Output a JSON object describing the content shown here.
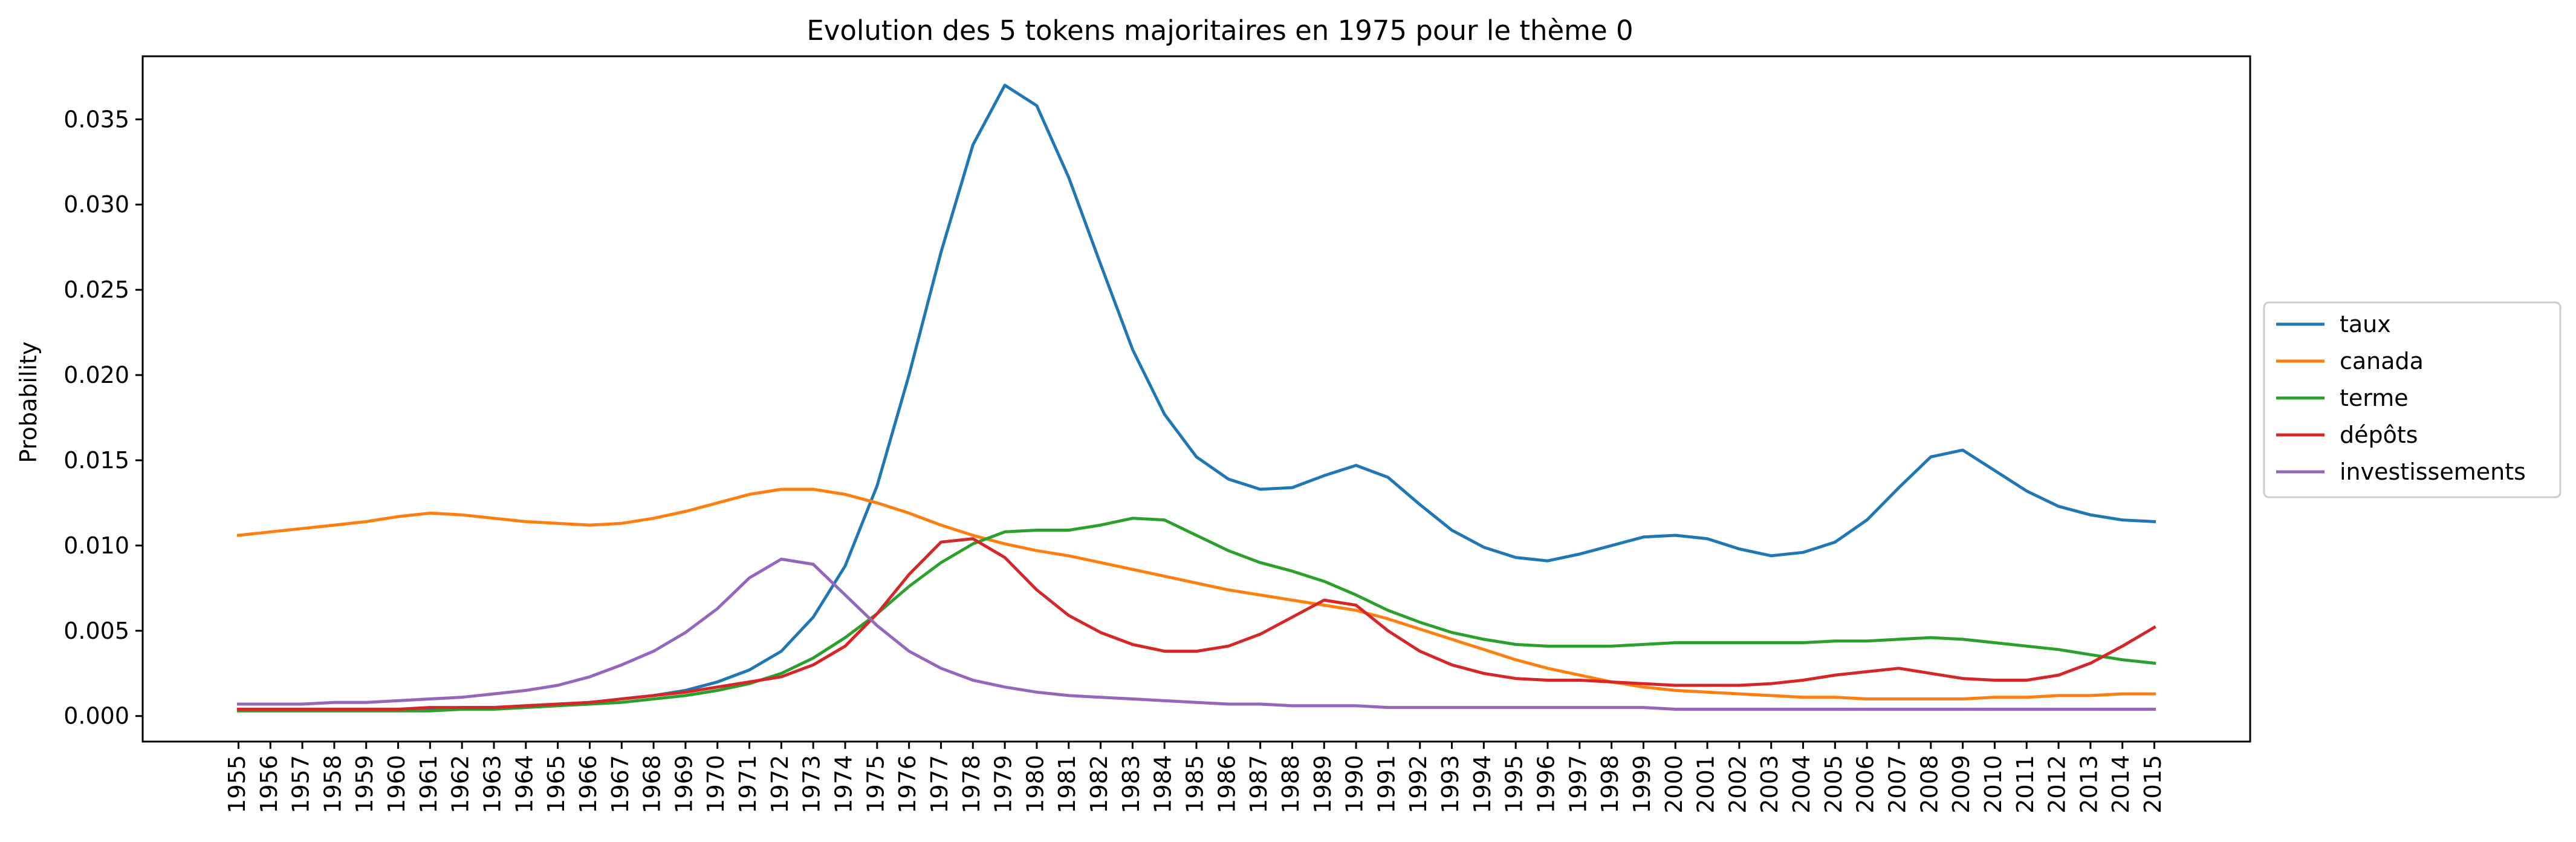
{
  "chart_data": {
    "type": "line",
    "title": "Evolution des 5 tokens majoritaires en 1975 pour le thème 0",
    "xlabel": "",
    "ylabel": "Probability",
    "x": [
      1955,
      1956,
      1957,
      1958,
      1959,
      1960,
      1961,
      1962,
      1963,
      1964,
      1965,
      1966,
      1967,
      1968,
      1969,
      1970,
      1971,
      1972,
      1973,
      1974,
      1975,
      1976,
      1977,
      1978,
      1979,
      1980,
      1981,
      1982,
      1983,
      1984,
      1985,
      1986,
      1987,
      1988,
      1989,
      1990,
      1991,
      1992,
      1993,
      1994,
      1995,
      1996,
      1997,
      1998,
      1999,
      2000,
      2001,
      2002,
      2003,
      2004,
      2005,
      2006,
      2007,
      2008,
      2009,
      2010,
      2011,
      2012,
      2013,
      2014,
      2015
    ],
    "xlim": [
      1952,
      2018
    ],
    "ylim": [
      -0.0015,
      0.0387
    ],
    "yticks": [
      0.0,
      0.005,
      0.01,
      0.015,
      0.02,
      0.025,
      0.03,
      0.035
    ],
    "ytick_labels": [
      "0.000",
      "0.005",
      "0.010",
      "0.015",
      "0.020",
      "0.025",
      "0.030",
      "0.035"
    ],
    "legend_position": "center-right-outside",
    "grid": false,
    "series": [
      {
        "name": "taux",
        "color": "#1f77b4",
        "values": [
          0.0004,
          0.0004,
          0.0004,
          0.0004,
          0.0004,
          0.0004,
          0.0004,
          0.0005,
          0.0005,
          0.0006,
          0.0007,
          0.0008,
          0.001,
          0.0012,
          0.0015,
          0.002,
          0.0027,
          0.0038,
          0.0058,
          0.0088,
          0.0135,
          0.02,
          0.0272,
          0.0335,
          0.037,
          0.0358,
          0.0316,
          0.0265,
          0.0215,
          0.0177,
          0.0152,
          0.0139,
          0.0133,
          0.0134,
          0.0141,
          0.0147,
          0.014,
          0.0124,
          0.0109,
          0.0099,
          0.0093,
          0.0091,
          0.0095,
          0.01,
          0.0105,
          0.0106,
          0.0104,
          0.0098,
          0.0094,
          0.0096,
          0.0102,
          0.0115,
          0.0134,
          0.0152,
          0.0156,
          0.0144,
          0.0132,
          0.0123,
          0.0118,
          0.0115,
          0.0114
        ]
      },
      {
        "name": "canada",
        "color": "#ff7f0e",
        "values": [
          0.0106,
          0.0108,
          0.011,
          0.0112,
          0.0114,
          0.0117,
          0.0119,
          0.0118,
          0.0116,
          0.0114,
          0.0113,
          0.0112,
          0.0113,
          0.0116,
          0.012,
          0.0125,
          0.013,
          0.0133,
          0.0133,
          0.013,
          0.0125,
          0.0119,
          0.0112,
          0.0106,
          0.0101,
          0.0097,
          0.0094,
          0.009,
          0.0086,
          0.0082,
          0.0078,
          0.0074,
          0.0071,
          0.0068,
          0.0065,
          0.0062,
          0.0057,
          0.0051,
          0.0045,
          0.0039,
          0.0033,
          0.0028,
          0.0024,
          0.002,
          0.0017,
          0.0015,
          0.0014,
          0.0013,
          0.0012,
          0.0011,
          0.0011,
          0.001,
          0.001,
          0.001,
          0.001,
          0.0011,
          0.0011,
          0.0012,
          0.0012,
          0.0013,
          0.0013
        ]
      },
      {
        "name": "terme",
        "color": "#2ca02c",
        "values": [
          0.0003,
          0.0003,
          0.0003,
          0.0003,
          0.0003,
          0.0003,
          0.0003,
          0.0004,
          0.0004,
          0.0005,
          0.0006,
          0.0007,
          0.0008,
          0.001,
          0.0012,
          0.0015,
          0.0019,
          0.0025,
          0.0034,
          0.0046,
          0.006,
          0.0076,
          0.009,
          0.0101,
          0.0108,
          0.0109,
          0.0109,
          0.0112,
          0.0116,
          0.0115,
          0.0106,
          0.0097,
          0.009,
          0.0085,
          0.0079,
          0.0071,
          0.0062,
          0.0055,
          0.0049,
          0.0045,
          0.0042,
          0.0041,
          0.0041,
          0.0041,
          0.0042,
          0.0043,
          0.0043,
          0.0043,
          0.0043,
          0.0043,
          0.0044,
          0.0044,
          0.0045,
          0.0046,
          0.0045,
          0.0043,
          0.0041,
          0.0039,
          0.0036,
          0.0033,
          0.0031
        ]
      },
      {
        "name": "dépôts",
        "color": "#d62728",
        "values": [
          0.0004,
          0.0004,
          0.0004,
          0.0004,
          0.0004,
          0.0004,
          0.0005,
          0.0005,
          0.0005,
          0.0006,
          0.0007,
          0.0008,
          0.001,
          0.0012,
          0.0014,
          0.0017,
          0.002,
          0.0023,
          0.003,
          0.0041,
          0.006,
          0.0083,
          0.0102,
          0.0104,
          0.0093,
          0.0074,
          0.0059,
          0.0049,
          0.0042,
          0.0038,
          0.0038,
          0.0041,
          0.0048,
          0.0058,
          0.0068,
          0.0065,
          0.005,
          0.0038,
          0.003,
          0.0025,
          0.0022,
          0.0021,
          0.0021,
          0.002,
          0.0019,
          0.0018,
          0.0018,
          0.0018,
          0.0019,
          0.0021,
          0.0024,
          0.0026,
          0.0028,
          0.0025,
          0.0022,
          0.0021,
          0.0021,
          0.0024,
          0.0031,
          0.0041,
          0.0052
        ]
      },
      {
        "name": "investissements",
        "color": "#9467bd",
        "values": [
          0.0007,
          0.0007,
          0.0007,
          0.0008,
          0.0008,
          0.0009,
          0.001,
          0.0011,
          0.0013,
          0.0015,
          0.0018,
          0.0023,
          0.003,
          0.0038,
          0.0049,
          0.0063,
          0.0081,
          0.0092,
          0.0089,
          0.0071,
          0.0053,
          0.0038,
          0.0028,
          0.0021,
          0.0017,
          0.0014,
          0.0012,
          0.0011,
          0.001,
          0.0009,
          0.0008,
          0.0007,
          0.0007,
          0.0006,
          0.0006,
          0.0006,
          0.0005,
          0.0005,
          0.0005,
          0.0005,
          0.0005,
          0.0005,
          0.0005,
          0.0005,
          0.0005,
          0.0004,
          0.0004,
          0.0004,
          0.0004,
          0.0004,
          0.0004,
          0.0004,
          0.0004,
          0.0004,
          0.0004,
          0.0004,
          0.0004,
          0.0004,
          0.0004,
          0.0004,
          0.0004
        ]
      }
    ]
  }
}
